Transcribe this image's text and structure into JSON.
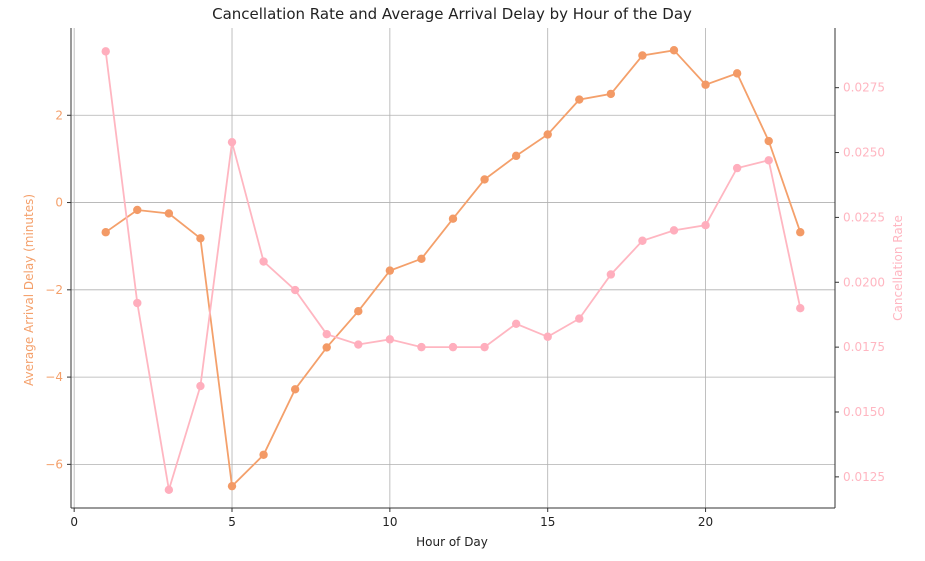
{
  "chart_data": {
    "type": "line",
    "title": "Cancellation Rate and Average Arrival Delay by Hour of the Day",
    "xlabel": "Hour of Day",
    "xlim": [
      -0.1,
      24.1
    ],
    "xticks": [
      0,
      5,
      10,
      15,
      20
    ],
    "grid": true,
    "colors": {
      "delay": "#f4a06b",
      "delay_marker": "#f39a66",
      "cancel": "#ffb6c1",
      "cancel_marker": "#ffaebd",
      "axis": "#333333"
    },
    "left_axis": {
      "label": "Average Arrival Delay (minutes)",
      "ylim": [
        -7.0,
        4.0
      ],
      "ticks": [
        -6,
        -4,
        -2,
        0,
        2
      ]
    },
    "right_axis": {
      "label": "Cancellation Rate",
      "ylim": [
        0.0113,
        0.0298
      ],
      "ticks": [
        "0.0125",
        "0.0150",
        "0.0175",
        "0.0200",
        "0.0225",
        "0.0250",
        "0.0275"
      ]
    },
    "x": [
      1,
      2,
      3,
      4,
      5,
      6,
      7,
      8,
      9,
      10,
      11,
      12,
      13,
      14,
      15,
      16,
      17,
      18,
      19,
      20,
      21,
      22,
      23
    ],
    "series": [
      {
        "axis": "left",
        "values": [
          -0.68,
          -0.17,
          -0.25,
          -0.82,
          -6.5,
          -5.78,
          -4.28,
          -3.32,
          -2.49,
          -1.56,
          -1.29,
          -0.37,
          0.53,
          1.07,
          1.56,
          2.36,
          2.49,
          3.37,
          3.49,
          2.7,
          2.96,
          1.41,
          -0.68
        ]
      },
      {
        "axis": "right",
        "values": [
          0.0289,
          0.0192,
          0.012,
          0.016,
          0.0254,
          0.0208,
          0.0197,
          0.018,
          0.0176,
          0.0178,
          0.0175,
          0.0175,
          0.0175,
          0.0184,
          0.0179,
          0.0186,
          0.0203,
          0.0216,
          0.022,
          0.0222,
          0.0244,
          0.0247,
          0.019
        ]
      }
    ]
  }
}
